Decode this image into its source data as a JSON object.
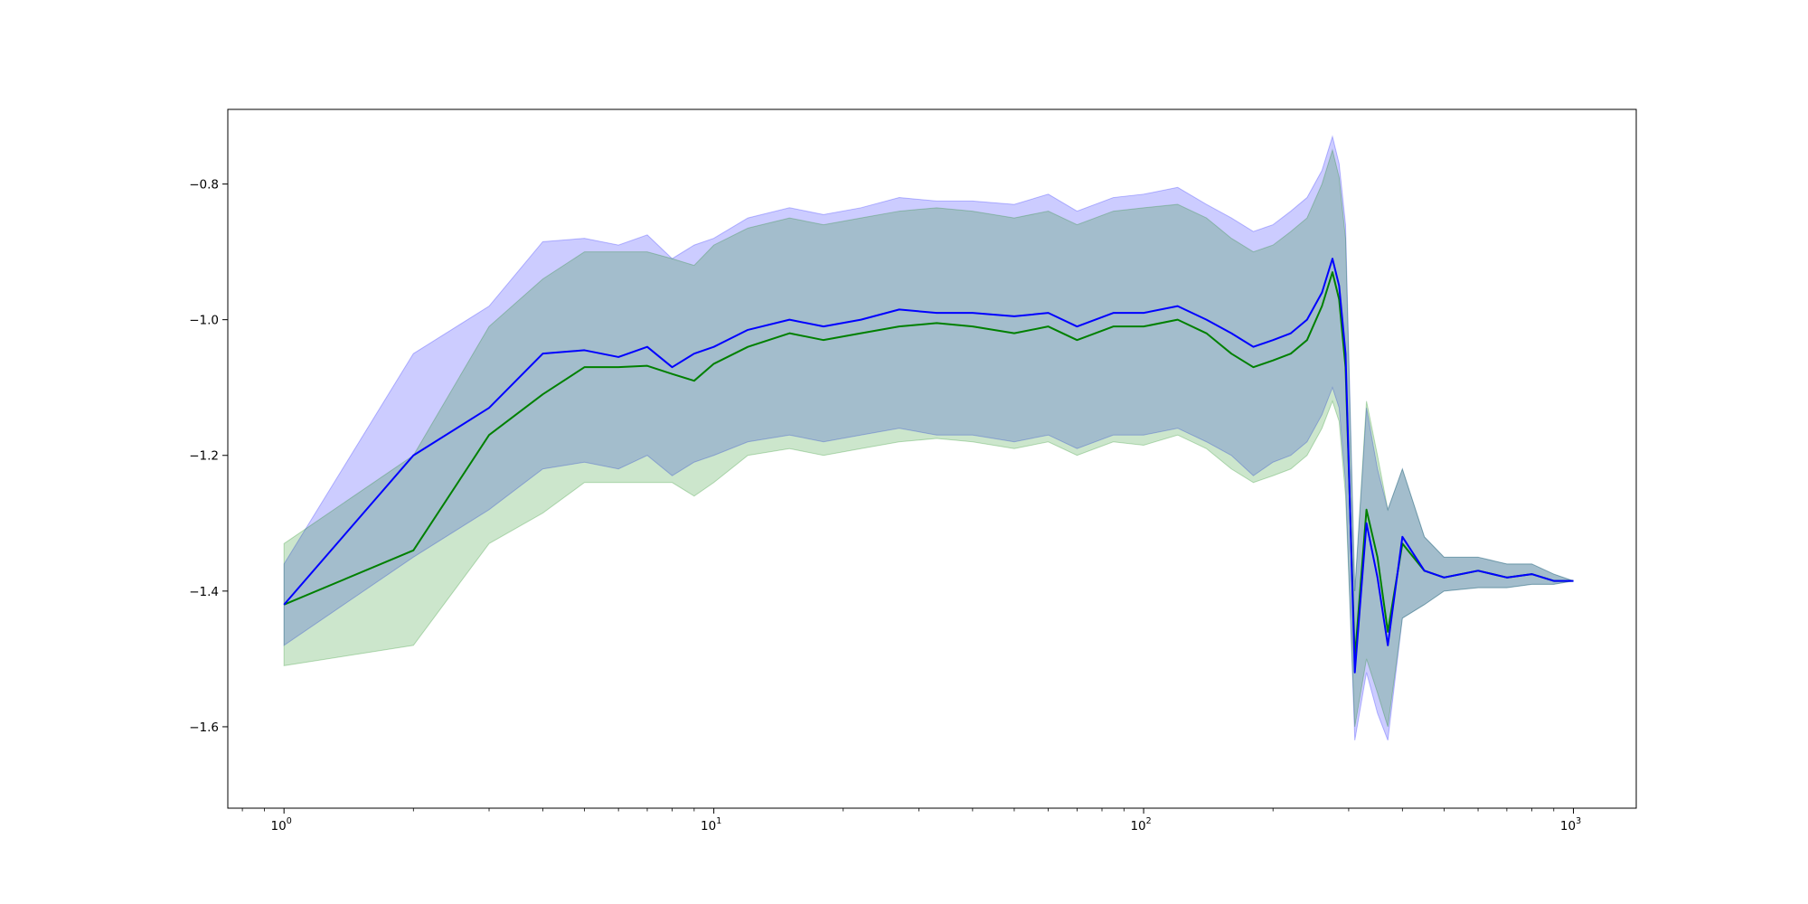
{
  "chart_data": {
    "type": "line",
    "title": "",
    "xlabel": "",
    "ylabel": "",
    "x_scale": "log",
    "xlim": [
      0.74,
      1400
    ],
    "ylim": [
      -1.72,
      -0.69
    ],
    "grid": false,
    "legend": "none",
    "x_ticks": [
      {
        "value": 1,
        "base": "10",
        "exp": "0"
      },
      {
        "value": 10,
        "base": "10",
        "exp": "1"
      },
      {
        "value": 100,
        "base": "10",
        "exp": "2"
      },
      {
        "value": 1000,
        "base": "10",
        "exp": "3"
      }
    ],
    "y_ticks": [
      {
        "value": -1.6,
        "label": "−1.6"
      },
      {
        "value": -1.4,
        "label": "−1.4"
      },
      {
        "value": -1.2,
        "label": "−1.2"
      },
      {
        "value": -1.0,
        "label": "−1.0"
      },
      {
        "value": -0.8,
        "label": "−0.8"
      }
    ],
    "series": [
      {
        "color": "#0000ff",
        "band_color": "#0000ff",
        "x": [
          1,
          2,
          3,
          4,
          5,
          6,
          7,
          8,
          9,
          10,
          12,
          15,
          18,
          22,
          27,
          33,
          40,
          50,
          60,
          70,
          85,
          100,
          120,
          140,
          160,
          180,
          200,
          220,
          240,
          260,
          275,
          285,
          295,
          310,
          330,
          350,
          370,
          400,
          450,
          500,
          600,
          700,
          800,
          900,
          1000
        ],
        "y": [
          -1.42,
          -1.2,
          -1.13,
          -1.05,
          -1.045,
          -1.055,
          -1.04,
          -1.07,
          -1.05,
          -1.04,
          -1.015,
          -1.0,
          -1.01,
          -1.0,
          -0.985,
          -0.99,
          -0.99,
          -0.995,
          -0.99,
          -1.01,
          -0.99,
          -0.99,
          -0.98,
          -1.0,
          -1.02,
          -1.04,
          -1.03,
          -1.02,
          -1.0,
          -0.96,
          -0.91,
          -0.95,
          -1.05,
          -1.52,
          -1.3,
          -1.38,
          -1.48,
          -1.32,
          -1.37,
          -1.38,
          -1.37,
          -1.38,
          -1.375,
          -1.385,
          -1.385
        ],
        "lower": [
          -1.48,
          -1.35,
          -1.28,
          -1.22,
          -1.21,
          -1.22,
          -1.2,
          -1.23,
          -1.21,
          -1.2,
          -1.18,
          -1.17,
          -1.18,
          -1.17,
          -1.16,
          -1.17,
          -1.17,
          -1.18,
          -1.17,
          -1.19,
          -1.17,
          -1.17,
          -1.16,
          -1.18,
          -1.2,
          -1.23,
          -1.21,
          -1.2,
          -1.18,
          -1.14,
          -1.1,
          -1.13,
          -1.24,
          -1.62,
          -1.52,
          -1.58,
          -1.62,
          -1.44,
          -1.42,
          -1.4,
          -1.395,
          -1.395,
          -1.39,
          -1.39,
          -1.385
        ],
        "upper": [
          -1.36,
          -1.05,
          -0.98,
          -0.885,
          -0.88,
          -0.89,
          -0.875,
          -0.91,
          -0.89,
          -0.88,
          -0.85,
          -0.835,
          -0.845,
          -0.835,
          -0.82,
          -0.825,
          -0.825,
          -0.83,
          -0.815,
          -0.84,
          -0.82,
          -0.815,
          -0.805,
          -0.83,
          -0.85,
          -0.87,
          -0.86,
          -0.84,
          -0.82,
          -0.78,
          -0.73,
          -0.77,
          -0.86,
          -1.4,
          -1.13,
          -1.22,
          -1.28,
          -1.22,
          -1.32,
          -1.35,
          -1.35,
          -1.36,
          -1.36,
          -1.375,
          -1.385
        ]
      },
      {
        "color": "#008000",
        "band_color": "#008000",
        "x": [
          1,
          2,
          3,
          4,
          5,
          6,
          7,
          8,
          9,
          10,
          12,
          15,
          18,
          22,
          27,
          33,
          40,
          50,
          60,
          70,
          85,
          100,
          120,
          140,
          160,
          180,
          200,
          220,
          240,
          260,
          275,
          285,
          295,
          310,
          330,
          350,
          370,
          400,
          450,
          500,
          600,
          700,
          800,
          900,
          1000
        ],
        "y": [
          -1.42,
          -1.34,
          -1.17,
          -1.11,
          -1.07,
          -1.07,
          -1.068,
          -1.08,
          -1.09,
          -1.065,
          -1.04,
          -1.02,
          -1.03,
          -1.02,
          -1.01,
          -1.005,
          -1.01,
          -1.02,
          -1.01,
          -1.03,
          -1.01,
          -1.01,
          -1.0,
          -1.02,
          -1.05,
          -1.07,
          -1.06,
          -1.05,
          -1.03,
          -0.98,
          -0.93,
          -0.97,
          -1.07,
          -1.5,
          -1.28,
          -1.35,
          -1.46,
          -1.33,
          -1.37,
          -1.38,
          -1.37,
          -1.38,
          -1.375,
          -1.385,
          -1.385
        ],
        "lower": [
          -1.51,
          -1.48,
          -1.33,
          -1.285,
          -1.24,
          -1.24,
          -1.24,
          -1.24,
          -1.26,
          -1.24,
          -1.2,
          -1.19,
          -1.2,
          -1.19,
          -1.18,
          -1.175,
          -1.18,
          -1.19,
          -1.18,
          -1.2,
          -1.18,
          -1.185,
          -1.17,
          -1.19,
          -1.22,
          -1.24,
          -1.23,
          -1.22,
          -1.2,
          -1.16,
          -1.12,
          -1.15,
          -1.26,
          -1.6,
          -1.5,
          -1.55,
          -1.6,
          -1.44,
          -1.42,
          -1.4,
          -1.395,
          -1.395,
          -1.39,
          -1.39,
          -1.385
        ],
        "upper": [
          -1.33,
          -1.2,
          -1.01,
          -0.94,
          -0.9,
          -0.9,
          -0.9,
          -0.91,
          -0.92,
          -0.89,
          -0.865,
          -0.85,
          -0.86,
          -0.85,
          -0.84,
          -0.835,
          -0.84,
          -0.85,
          -0.84,
          -0.86,
          -0.84,
          -0.835,
          -0.83,
          -0.85,
          -0.88,
          -0.9,
          -0.89,
          -0.87,
          -0.85,
          -0.8,
          -0.75,
          -0.79,
          -0.88,
          -1.4,
          -1.12,
          -1.2,
          -1.28,
          -1.22,
          -1.32,
          -1.35,
          -1.35,
          -1.36,
          -1.36,
          -1.375,
          -1.385
        ]
      }
    ]
  }
}
